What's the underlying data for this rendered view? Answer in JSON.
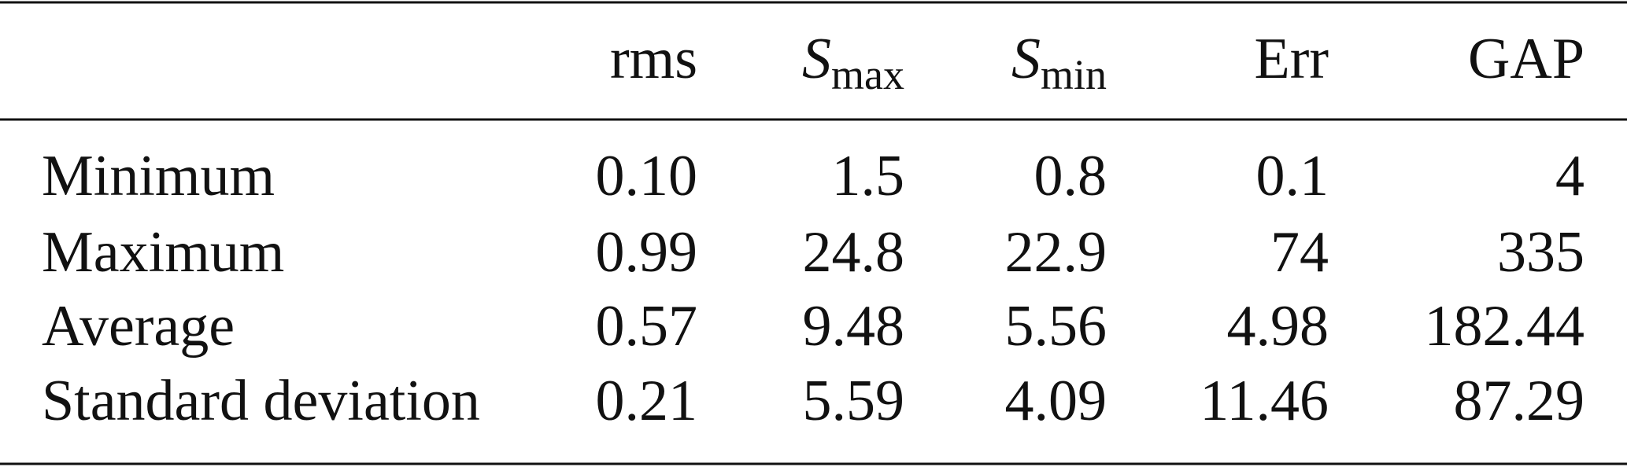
{
  "table": {
    "columns": [
      {
        "text": "rms"
      },
      {
        "symbol": "S",
        "subscript": "max"
      },
      {
        "symbol": "S",
        "subscript": "min"
      },
      {
        "text": "Err"
      },
      {
        "text": "GAP"
      }
    ],
    "rows": [
      {
        "label": "Minimum",
        "cells": [
          "0.10",
          "1.5",
          "0.8",
          "0.1",
          "4"
        ]
      },
      {
        "label": "Maximum",
        "cells": [
          "0.99",
          "24.8",
          "22.9",
          "74",
          "335"
        ]
      },
      {
        "label": "Average",
        "cells": [
          "0.57",
          "9.48",
          "5.56",
          "4.98",
          "182.44"
        ]
      },
      {
        "label": "Standard deviation",
        "cells": [
          "0.21",
          "5.59",
          "4.09",
          "11.46",
          "87.29"
        ]
      }
    ]
  }
}
